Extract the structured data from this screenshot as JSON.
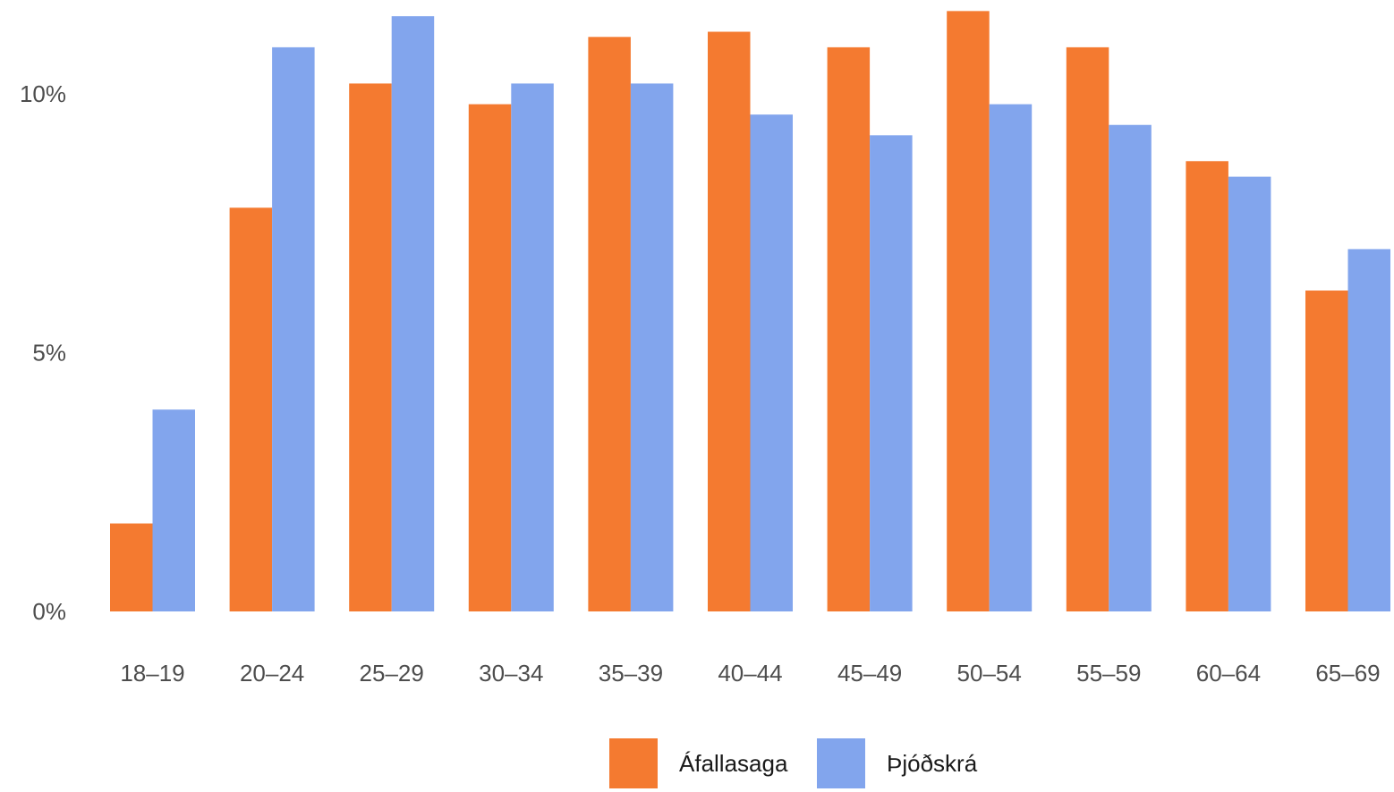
{
  "chart_data": {
    "type": "bar",
    "categories": [
      "18–19",
      "20–24",
      "25–29",
      "30–34",
      "35–39",
      "40–44",
      "45–49",
      "50–54",
      "55–59",
      "60–64",
      "65–69"
    ],
    "series": [
      {
        "name": "Áfallasaga",
        "color": "#f47a30",
        "values": [
          1.7,
          7.8,
          10.2,
          9.8,
          11.1,
          11.2,
          10.9,
          11.6,
          10.9,
          8.7,
          6.2
        ]
      },
      {
        "name": "Þjóðskrá",
        "color": "#82a5ed",
        "values": [
          3.9,
          10.9,
          11.5,
          10.2,
          10.2,
          9.6,
          9.2,
          9.8,
          9.4,
          8.4,
          7.0
        ]
      }
    ],
    "title": "",
    "xlabel": "",
    "ylabel": "",
    "ylim": [
      0,
      11.8
    ],
    "yticks": [
      0,
      5,
      10
    ],
    "ytick_labels": [
      "0%",
      "5%",
      "10%"
    ],
    "grid": false,
    "legend_position": "bottom"
  }
}
